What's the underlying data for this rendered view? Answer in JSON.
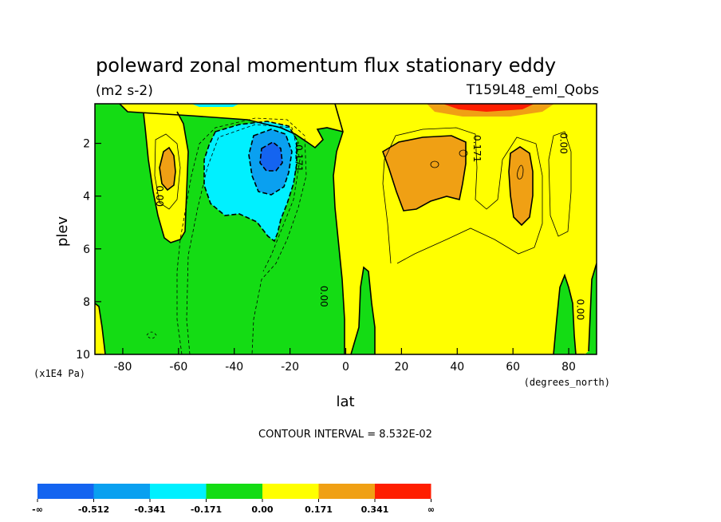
{
  "chart_data": {
    "type": "heatmap",
    "title": "poleward zonal momentum flux stationary eddy",
    "units": "(m2 s-2)",
    "run_label": "T159L48_eml_Qobs",
    "xlabel": "lat",
    "x_units": "(degrees_north)",
    "ylabel": "plev",
    "y_units": "(x1E4 Pa)",
    "xlim": [
      -90,
      90
    ],
    "ylim": [
      10,
      0.5
    ],
    "x_ticks": [
      -80,
      -60,
      -40,
      -20,
      0,
      20,
      40,
      60,
      80
    ],
    "y_ticks": [
      2,
      4,
      6,
      8,
      10
    ],
    "contour_interval_text": "CONTOUR INTERVAL = 8.532E-02",
    "contour_interval": 0.08532,
    "contour_labels": [
      {
        "text": "0.00",
        "lat": -68,
        "plev": 4.0
      },
      {
        "text": "-0.171",
        "lat": -18,
        "plev": 2.5
      },
      {
        "text": "0.00",
        "lat": -9,
        "plev": 7.8
      },
      {
        "text": "0.171",
        "lat": 46,
        "plev": 2.2
      },
      {
        "text": "0.00",
        "lat": 77,
        "plev": 2.0
      },
      {
        "text": "0.00",
        "lat": 83,
        "plev": 8.3
      }
    ],
    "color_levels": [
      "-∞",
      "-0.512",
      "-0.341",
      "-0.171",
      "0.00",
      "0.171",
      "0.341",
      "∞"
    ],
    "color_fills": [
      "#1464f0",
      "#0aa0f0",
      "#00f0ff",
      "#14dc14",
      "#ffff00",
      "#f0a014",
      "#ff1e00"
    ],
    "field_regions": [
      {
        "name": "sh-negative-core",
        "min": -0.512,
        "max": -0.341,
        "lat_range": [
          -33,
          -20
        ],
        "plev_range": [
          1.6,
          3.6
        ]
      },
      {
        "name": "sh-negative-band",
        "min": -0.341,
        "max": -0.171,
        "lat_range": [
          -52,
          -15
        ],
        "plev_range": [
          0.9,
          5.5
        ]
      },
      {
        "name": "sh-positive-cell",
        "min": 0.171,
        "max": 0.341,
        "lat_range": [
          -67,
          -60
        ],
        "plev_range": [
          2.0,
          3.3
        ]
      },
      {
        "name": "nh-positive-cell-1",
        "min": 0.171,
        "max": 0.341,
        "lat_range": [
          17,
          47
        ],
        "plev_range": [
          1.6,
          4.3
        ]
      },
      {
        "name": "nh-positive-cell-2",
        "min": 0.171,
        "max": 0.341,
        "lat_range": [
          58,
          69
        ],
        "plev_range": [
          1.8,
          4.1
        ]
      },
      {
        "name": "nh-high-top",
        "min": 0.341,
        "max": 1.0,
        "lat_range": [
          33,
          65
        ],
        "plev_range": [
          0.5,
          0.9
        ]
      }
    ]
  }
}
